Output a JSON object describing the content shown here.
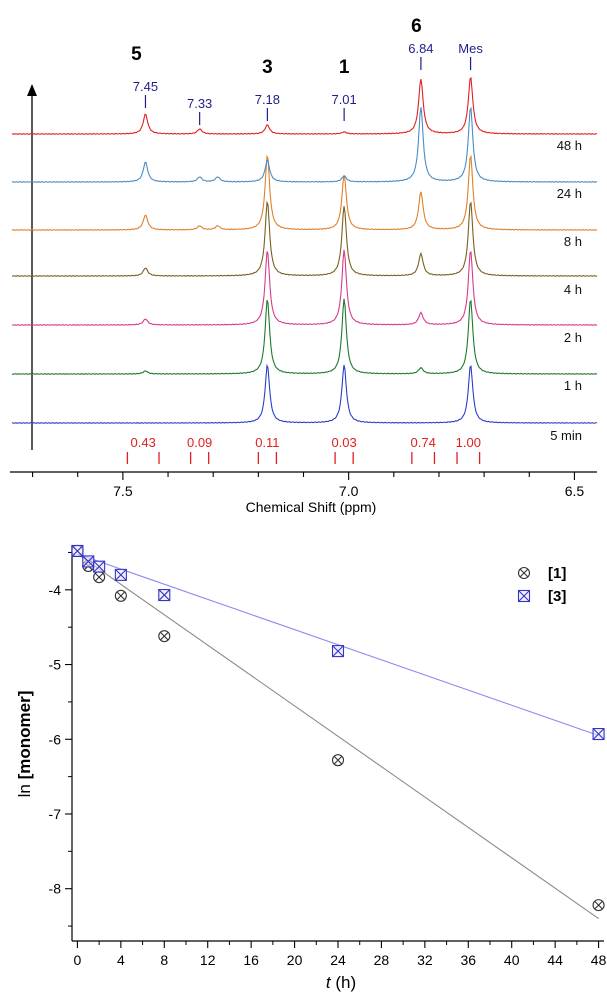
{
  "chart_data": [
    {
      "type": "line",
      "xlabel": "Chemical Shift (ppm)",
      "xlim": [
        7.75,
        6.45
      ],
      "x_ticks": [
        "7.5",
        "7.0",
        "6.5"
      ],
      "colors": [
        "#2a3fc7",
        "#1f7a2a",
        "#d83a8a",
        "#7a6020",
        "#e0802a",
        "#4a8cc4",
        "#e02020"
      ],
      "series": [
        {
          "name": "5 min",
          "color": "#2a3fc7",
          "peaks": [
            {
              "ppm": 7.18,
              "h": 58
            },
            {
              "ppm": 7.01,
              "h": 58
            },
            {
              "ppm": 6.73,
              "h": 58
            }
          ]
        },
        {
          "name": "1 h",
          "color": "#1f7a2a",
          "peaks": [
            {
              "ppm": 7.45,
              "h": 3
            },
            {
              "ppm": 7.18,
              "h": 75
            },
            {
              "ppm": 7.01,
              "h": 75
            },
            {
              "ppm": 6.84,
              "h": 6
            },
            {
              "ppm": 6.73,
              "h": 75
            }
          ]
        },
        {
          "name": "2 h",
          "color": "#d83a8a",
          "peaks": [
            {
              "ppm": 7.45,
              "h": 6
            },
            {
              "ppm": 7.18,
              "h": 75
            },
            {
              "ppm": 7.01,
              "h": 75
            },
            {
              "ppm": 6.84,
              "h": 12
            },
            {
              "ppm": 6.73,
              "h": 75
            }
          ]
        },
        {
          "name": "4 h",
          "color": "#7a6020",
          "peaks": [
            {
              "ppm": 7.45,
              "h": 8
            },
            {
              "ppm": 7.18,
              "h": 75
            },
            {
              "ppm": 7.01,
              "h": 70
            },
            {
              "ppm": 6.84,
              "h": 22
            },
            {
              "ppm": 6.73,
              "h": 75
            }
          ]
        },
        {
          "name": "8 h",
          "color": "#e0802a",
          "peaks": [
            {
              "ppm": 7.45,
              "h": 15
            },
            {
              "ppm": 7.33,
              "h": 4
            },
            {
              "ppm": 7.29,
              "h": 4
            },
            {
              "ppm": 7.18,
              "h": 75
            },
            {
              "ppm": 7.01,
              "h": 55
            },
            {
              "ppm": 6.84,
              "h": 38
            },
            {
              "ppm": 6.73,
              "h": 75
            }
          ]
        },
        {
          "name": "24 h",
          "color": "#4a8cc4",
          "peaks": [
            {
              "ppm": 7.45,
              "h": 20
            },
            {
              "ppm": 7.33,
              "h": 5
            },
            {
              "ppm": 7.29,
              "h": 5
            },
            {
              "ppm": 7.18,
              "h": 22
            },
            {
              "ppm": 7.01,
              "h": 6
            },
            {
              "ppm": 6.84,
              "h": 75
            },
            {
              "ppm": 6.73,
              "h": 75
            }
          ]
        },
        {
          "name": "48 h",
          "color": "#e02020",
          "peaks": [
            {
              "ppm": 7.45,
              "h": 20
            },
            {
              "ppm": 7.33,
              "h": 5
            },
            {
              "ppm": 7.18,
              "h": 9
            },
            {
              "ppm": 7.01,
              "h": 2
            },
            {
              "ppm": 6.84,
              "h": 55
            },
            {
              "ppm": 6.73,
              "h": 57
            }
          ]
        }
      ],
      "compound_labels": [
        {
          "text": "5",
          "ppm": 7.47
        },
        {
          "text": "3",
          "ppm": 7.18
        },
        {
          "text": "1",
          "ppm": 7.01
        },
        {
          "text": "6",
          "ppm": 6.85
        }
      ],
      "peak_labels": [
        {
          "text": "7.45",
          "ppm": 7.45
        },
        {
          "text": "7.33",
          "ppm": 7.33
        },
        {
          "text": "7.18",
          "ppm": 7.18
        },
        {
          "text": "7.01",
          "ppm": 7.01
        },
        {
          "text": "6.84",
          "ppm": 6.84
        },
        {
          "text": "Mes",
          "ppm": 6.73
        }
      ],
      "integrals": [
        {
          "text": "0.43",
          "from": 7.49,
          "to": 7.42
        },
        {
          "text": "0.09",
          "from": 7.35,
          "to": 7.31
        },
        {
          "text": "0.11",
          "from": 7.2,
          "to": 7.16
        },
        {
          "text": "0.03",
          "from": 7.03,
          "to": 6.99
        },
        {
          "text": "0.74",
          "from": 6.86,
          "to": 6.81
        },
        {
          "text": "1.00",
          "from": 6.76,
          "to": 6.71
        }
      ]
    },
    {
      "type": "scatter",
      "xlabel_italic": "t",
      "xlabel_unit": " (h)",
      "ylabel_prefix": "ln ",
      "ylabel_main": "[monomer]",
      "xlim": [
        -0.5,
        48.5
      ],
      "ylim": [
        -8.7,
        -3.4
      ],
      "x_ticks": [
        0,
        4,
        8,
        12,
        16,
        20,
        24,
        28,
        32,
        36,
        40,
        44,
        48
      ],
      "y_ticks": [
        -4,
        -5,
        -6,
        -7,
        -8
      ],
      "legend_position": "top-right",
      "series": [
        {
          "name": "[1]",
          "color": "#333333",
          "marker": "circle-x",
          "x": [
            0,
            1,
            2,
            4,
            8,
            24,
            48
          ],
          "y": [
            -3.48,
            -3.68,
            -3.83,
            -4.08,
            -4.62,
            -6.28,
            -8.22
          ],
          "fit": [
            [
              0,
              -3.52
            ],
            [
              48,
              -8.4
            ]
          ]
        },
        {
          "name": "[3]",
          "color": "#3434c4",
          "marker": "square-x",
          "x": [
            0,
            1,
            2,
            4,
            8,
            24,
            48
          ],
          "y": [
            -3.48,
            -3.62,
            -3.69,
            -3.8,
            -4.07,
            -4.82,
            -5.93
          ],
          "fit": [
            [
              0,
              -3.52
            ],
            [
              48,
              -5.95
            ]
          ]
        }
      ]
    }
  ]
}
